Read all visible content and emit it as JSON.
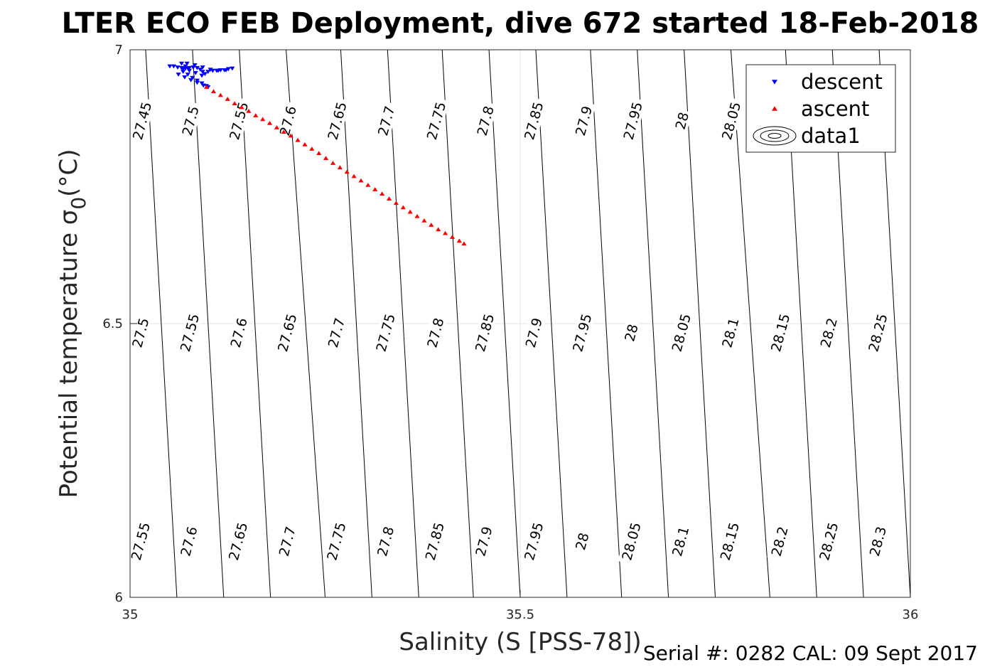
{
  "chart_data": {
    "type": "scatter",
    "title": "LTER ECO FEB Deployment, dive 672 started 18-Feb-2018",
    "xlabel": "Salinity (S [PSS-78])",
    "ylabel": "Potential temperature σ",
    "ylabel_subscript": "0",
    "ylabel_unit": "(°C)",
    "xlim": [
      35,
      36
    ],
    "ylim": [
      6,
      7
    ],
    "xticks": [
      35,
      35.5,
      36
    ],
    "yticks": [
      6,
      6.5,
      7
    ],
    "xtick_labels": [
      "35",
      "35.5",
      "36"
    ],
    "ytick_labels": [
      "6",
      "6.5",
      "7"
    ],
    "grid": true,
    "legend_position": "top-right",
    "series": [
      {
        "name": "descent",
        "marker": "triangle-down",
        "color": "#0000ff",
        "x": [
          35.051,
          35.056,
          35.061,
          35.066,
          35.071,
          35.076,
          35.081,
          35.086,
          35.09,
          35.093,
          35.096,
          35.1,
          35.106,
          35.111,
          35.116,
          35.121,
          35.126,
          35.131,
          35.123,
          35.113,
          35.103,
          35.093,
          35.083,
          35.073,
          35.066,
          35.071,
          35.075,
          35.068,
          35.062,
          35.07,
          35.078,
          35.086,
          35.094,
          35.1,
          35.092,
          35.084,
          35.076,
          35.068,
          35.074,
          35.08,
          35.086,
          35.092,
          35.098
        ],
        "y": [
          6.97,
          6.97,
          6.968,
          6.967,
          6.966,
          6.967,
          6.968,
          6.967,
          6.964,
          6.96,
          6.956,
          6.96,
          6.962,
          6.962,
          6.963,
          6.963,
          6.965,
          6.966,
          6.963,
          6.962,
          6.964,
          6.968,
          6.972,
          6.975,
          6.975,
          6.97,
          6.965,
          6.96,
          6.955,
          6.95,
          6.945,
          6.94,
          6.935,
          6.932,
          6.953,
          6.958,
          6.962,
          6.965,
          6.955,
          6.949,
          6.944,
          6.939,
          6.934
        ]
      },
      {
        "name": "ascent",
        "marker": "triangle-up",
        "color": "#ff0000",
        "x": [
          35.098,
          35.107,
          35.116,
          35.125,
          35.134,
          35.143,
          35.152,
          35.161,
          35.17,
          35.179,
          35.188,
          35.197,
          35.206,
          35.215,
          35.224,
          35.233,
          35.242,
          35.251,
          35.26,
          35.269,
          35.278,
          35.287,
          35.296,
          35.305,
          35.314,
          35.323,
          35.332,
          35.341,
          35.35,
          35.359,
          35.368,
          35.377,
          35.386,
          35.395,
          35.404,
          35.413,
          35.422,
          35.428
        ],
        "y": [
          6.932,
          6.924,
          6.917,
          6.91,
          6.902,
          6.895,
          6.888,
          6.88,
          6.873,
          6.866,
          6.858,
          6.85,
          6.843,
          6.835,
          6.827,
          6.819,
          6.811,
          6.802,
          6.793,
          6.785,
          6.777,
          6.769,
          6.761,
          6.753,
          6.745,
          6.737,
          6.728,
          6.72,
          6.712,
          6.704,
          6.696,
          6.688,
          6.68,
          6.672,
          6.665,
          6.658,
          6.651,
          6.646
        ]
      },
      {
        "name": "data1",
        "marker": "contour",
        "color": "#000000"
      }
    ],
    "contours": {
      "color": "#000000",
      "x_start_at_y_max": [
        34.97,
        35.02,
        35.08,
        35.14,
        35.2,
        35.27,
        35.33,
        35.4,
        35.46,
        35.52,
        35.59,
        35.65,
        35.71,
        35.77,
        35.84,
        35.9,
        35.96,
        36.03,
        36.09
      ],
      "x_end_at_y_min": [
        34.99,
        35.06,
        35.12,
        35.18,
        35.25,
        35.31,
        35.37,
        35.44,
        35.5,
        35.56,
        35.63,
        35.69,
        35.75,
        35.82,
        35.88,
        35.94,
        36.0,
        36.07
      ],
      "labels": [
        {
          "text": "27.45",
          "x": 35.016,
          "y": 6.87
        },
        {
          "text": "27.5",
          "x": 35.078,
          "y": 6.87
        },
        {
          "text": "27.55",
          "x": 35.14,
          "y": 6.87
        },
        {
          "text": "27.6",
          "x": 35.203,
          "y": 6.87
        },
        {
          "text": "27.65",
          "x": 35.266,
          "y": 6.87
        },
        {
          "text": "27.7",
          "x": 35.329,
          "y": 6.87
        },
        {
          "text": "27.75",
          "x": 35.393,
          "y": 6.87
        },
        {
          "text": "27.8",
          "x": 35.456,
          "y": 6.87
        },
        {
          "text": "27.85",
          "x": 35.518,
          "y": 6.87
        },
        {
          "text": "27.9",
          "x": 35.582,
          "y": 6.87
        },
        {
          "text": "27.95",
          "x": 35.645,
          "y": 6.87
        },
        {
          "text": "28",
          "x": 35.708,
          "y": 6.87
        },
        {
          "text": "28.05",
          "x": 35.771,
          "y": 6.87
        },
        {
          "text": "27.5",
          "x": 35.014,
          "y": 6.483
        },
        {
          "text": "27.55",
          "x": 35.077,
          "y": 6.483
        },
        {
          "text": "27.6",
          "x": 35.14,
          "y": 6.483
        },
        {
          "text": "27.65",
          "x": 35.202,
          "y": 6.483
        },
        {
          "text": "27.7",
          "x": 35.265,
          "y": 6.483
        },
        {
          "text": "27.75",
          "x": 35.328,
          "y": 6.483
        },
        {
          "text": "27.8",
          "x": 35.392,
          "y": 6.483
        },
        {
          "text": "27.85",
          "x": 35.455,
          "y": 6.483
        },
        {
          "text": "27.9",
          "x": 35.518,
          "y": 6.483
        },
        {
          "text": "27.95",
          "x": 35.58,
          "y": 6.483
        },
        {
          "text": "28",
          "x": 35.643,
          "y": 6.483
        },
        {
          "text": "28.05",
          "x": 35.707,
          "y": 6.483
        },
        {
          "text": "28.1",
          "x": 35.77,
          "y": 6.483
        },
        {
          "text": "28.15",
          "x": 35.834,
          "y": 6.483
        },
        {
          "text": "28.2",
          "x": 35.896,
          "y": 6.483
        },
        {
          "text": "28.25",
          "x": 35.959,
          "y": 6.483
        },
        {
          "text": "27.55",
          "x": 35.014,
          "y": 6.102
        },
        {
          "text": "27.6",
          "x": 35.076,
          "y": 6.102
        },
        {
          "text": "27.65",
          "x": 35.139,
          "y": 6.102
        },
        {
          "text": "27.7",
          "x": 35.202,
          "y": 6.102
        },
        {
          "text": "27.75",
          "x": 35.265,
          "y": 6.102
        },
        {
          "text": "27.8",
          "x": 35.328,
          "y": 6.102
        },
        {
          "text": "27.85",
          "x": 35.391,
          "y": 6.102
        },
        {
          "text": "27.9",
          "x": 35.454,
          "y": 6.102
        },
        {
          "text": "27.95",
          "x": 35.518,
          "y": 6.102
        },
        {
          "text": "28",
          "x": 35.58,
          "y": 6.102
        },
        {
          "text": "28.05",
          "x": 35.643,
          "y": 6.102
        },
        {
          "text": "28.1",
          "x": 35.706,
          "y": 6.102
        },
        {
          "text": "28.15",
          "x": 35.769,
          "y": 6.102
        },
        {
          "text": "28.2",
          "x": 35.833,
          "y": 6.102
        },
        {
          "text": "28.25",
          "x": 35.896,
          "y": 6.102
        },
        {
          "text": "28.3",
          "x": 35.959,
          "y": 6.102
        }
      ]
    }
  },
  "footer": {
    "text": "Serial #: 0282  CAL: 09 Sept 2017"
  }
}
